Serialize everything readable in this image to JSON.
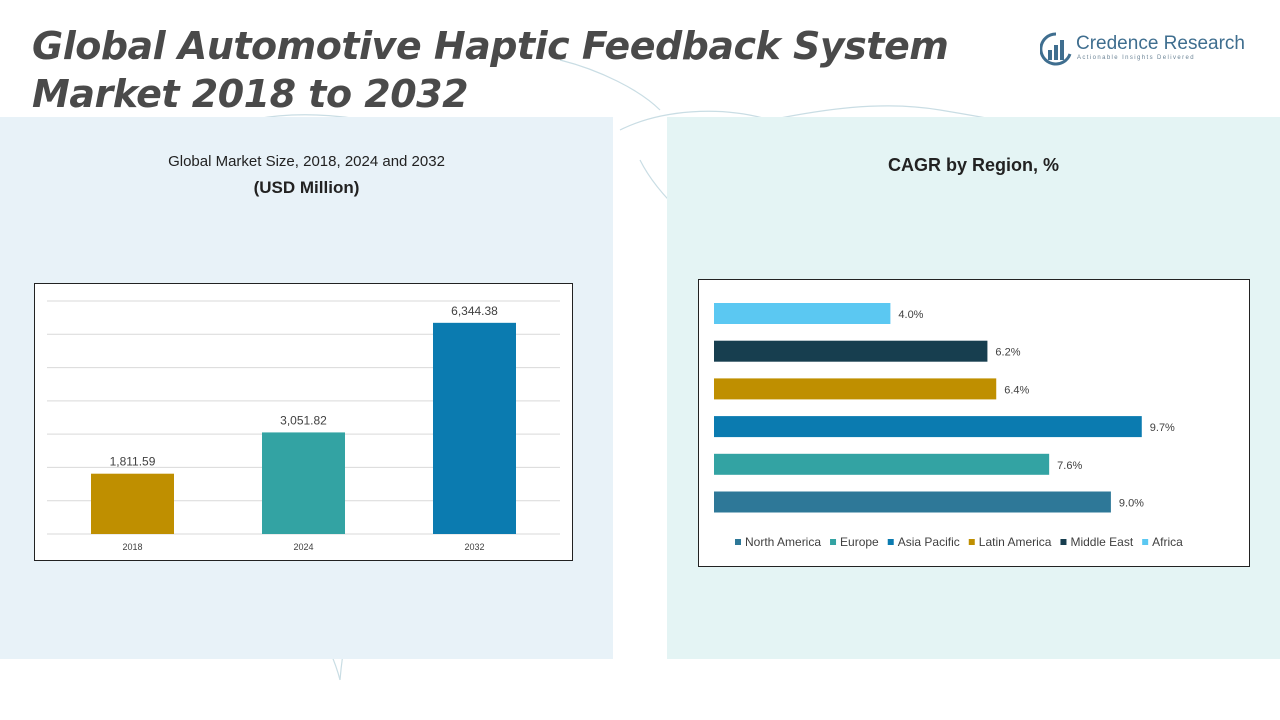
{
  "title_line1": "Global Automotive Haptic Feedback System",
  "title_line2": "Market 2018 to 2032",
  "brand": {
    "name_part1": "Credence",
    "name_part2": " Research",
    "tagline": "Actionable Insights Delivered",
    "color": "#3f6e8f"
  },
  "chart_data": [
    {
      "type": "bar",
      "title": "Global Market Size, 2018, 2024 and 2032",
      "subtitle": "(USD Million)",
      "categories": [
        "2018",
        "2024",
        "2032"
      ],
      "values": [
        1811.59,
        3051.82,
        6344.38
      ],
      "value_labels": [
        "1,811.59",
        "3,051.82",
        "6,344.38"
      ],
      "colors": [
        "#bf8f00",
        "#33a3a3",
        "#0b7bb0"
      ],
      "ylim": [
        0,
        7000
      ],
      "grid": true,
      "xlabel": "",
      "ylabel": ""
    },
    {
      "type": "bar",
      "orientation": "horizontal",
      "title": "CAGR by Region, %",
      "categories": [
        "North America",
        "Europe",
        "Asia Pacific",
        "Latin America",
        "Middle East",
        "Africa"
      ],
      "values": [
        9.0,
        7.6,
        9.7,
        6.4,
        6.2,
        4.0
      ],
      "value_labels": [
        "9.0%",
        "7.6%",
        "9.7%",
        "6.4%",
        "6.2%",
        "4.0%"
      ],
      "colors": [
        "#2e7898",
        "#33a3a3",
        "#0b7bb0",
        "#bf8f00",
        "#173e4f",
        "#5bc8f2"
      ],
      "xlim": [
        0,
        10.5
      ],
      "legend": "bottom"
    }
  ]
}
